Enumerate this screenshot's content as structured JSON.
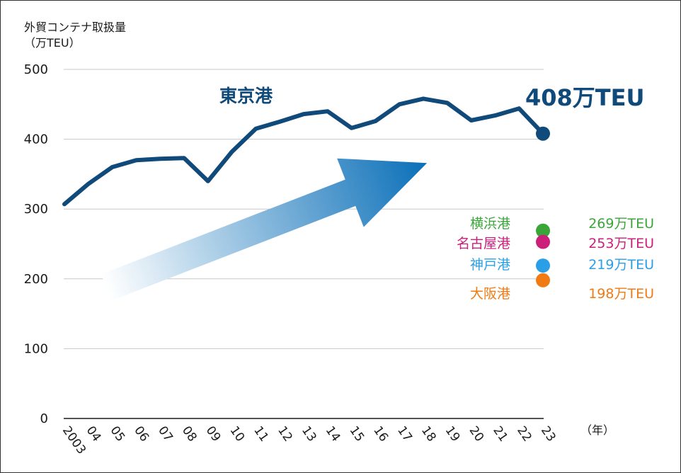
{
  "colors": {
    "tokyo": "#0f4a7a",
    "yokohama": "#3aa63a",
    "nagoya": "#cc1f7a",
    "kobe": "#2a9fe8",
    "osaka": "#f07a14",
    "grid": "#c8c8c8",
    "axis": "#1a1a1a",
    "arrow_start": "#ffffff",
    "arrow_end": "#0a6fb8"
  },
  "chart_data": {
    "type": "line",
    "ylabel_line1": "外貿コンテナ取扱量",
    "ylabel_line2": "（万TEU）",
    "xunit": "（年）",
    "ylim": [
      0,
      500
    ],
    "yticks": [
      "0",
      "100",
      "200",
      "300",
      "400",
      "500"
    ],
    "ytick_values": [
      0,
      100,
      200,
      300,
      400,
      500
    ],
    "grid": true,
    "x": [
      "2003",
      "04",
      "05",
      "06",
      "07",
      "08",
      "09",
      "10",
      "11",
      "12",
      "13",
      "14",
      "15",
      "16",
      "17",
      "18",
      "19",
      "20",
      "21",
      "22",
      "23"
    ],
    "series": [
      {
        "name": "東京港",
        "values": [
          307,
          336,
          360,
          370,
          372,
          373,
          340,
          382,
          415,
          425,
          436,
          440,
          416,
          426,
          450,
          458,
          452,
          427,
          434,
          444,
          408
        ]
      }
    ],
    "end_label": "408万TEU",
    "other_ports": [
      {
        "name": "横浜港",
        "value": 269,
        "label": "269万TEU"
      },
      {
        "name": "名古屋港",
        "value": 253,
        "label": "253万TEU"
      },
      {
        "name": "神戸港",
        "value": 219,
        "label": "219万TEU"
      },
      {
        "name": "大阪港",
        "value": 198,
        "label": "198万TEU"
      }
    ]
  }
}
